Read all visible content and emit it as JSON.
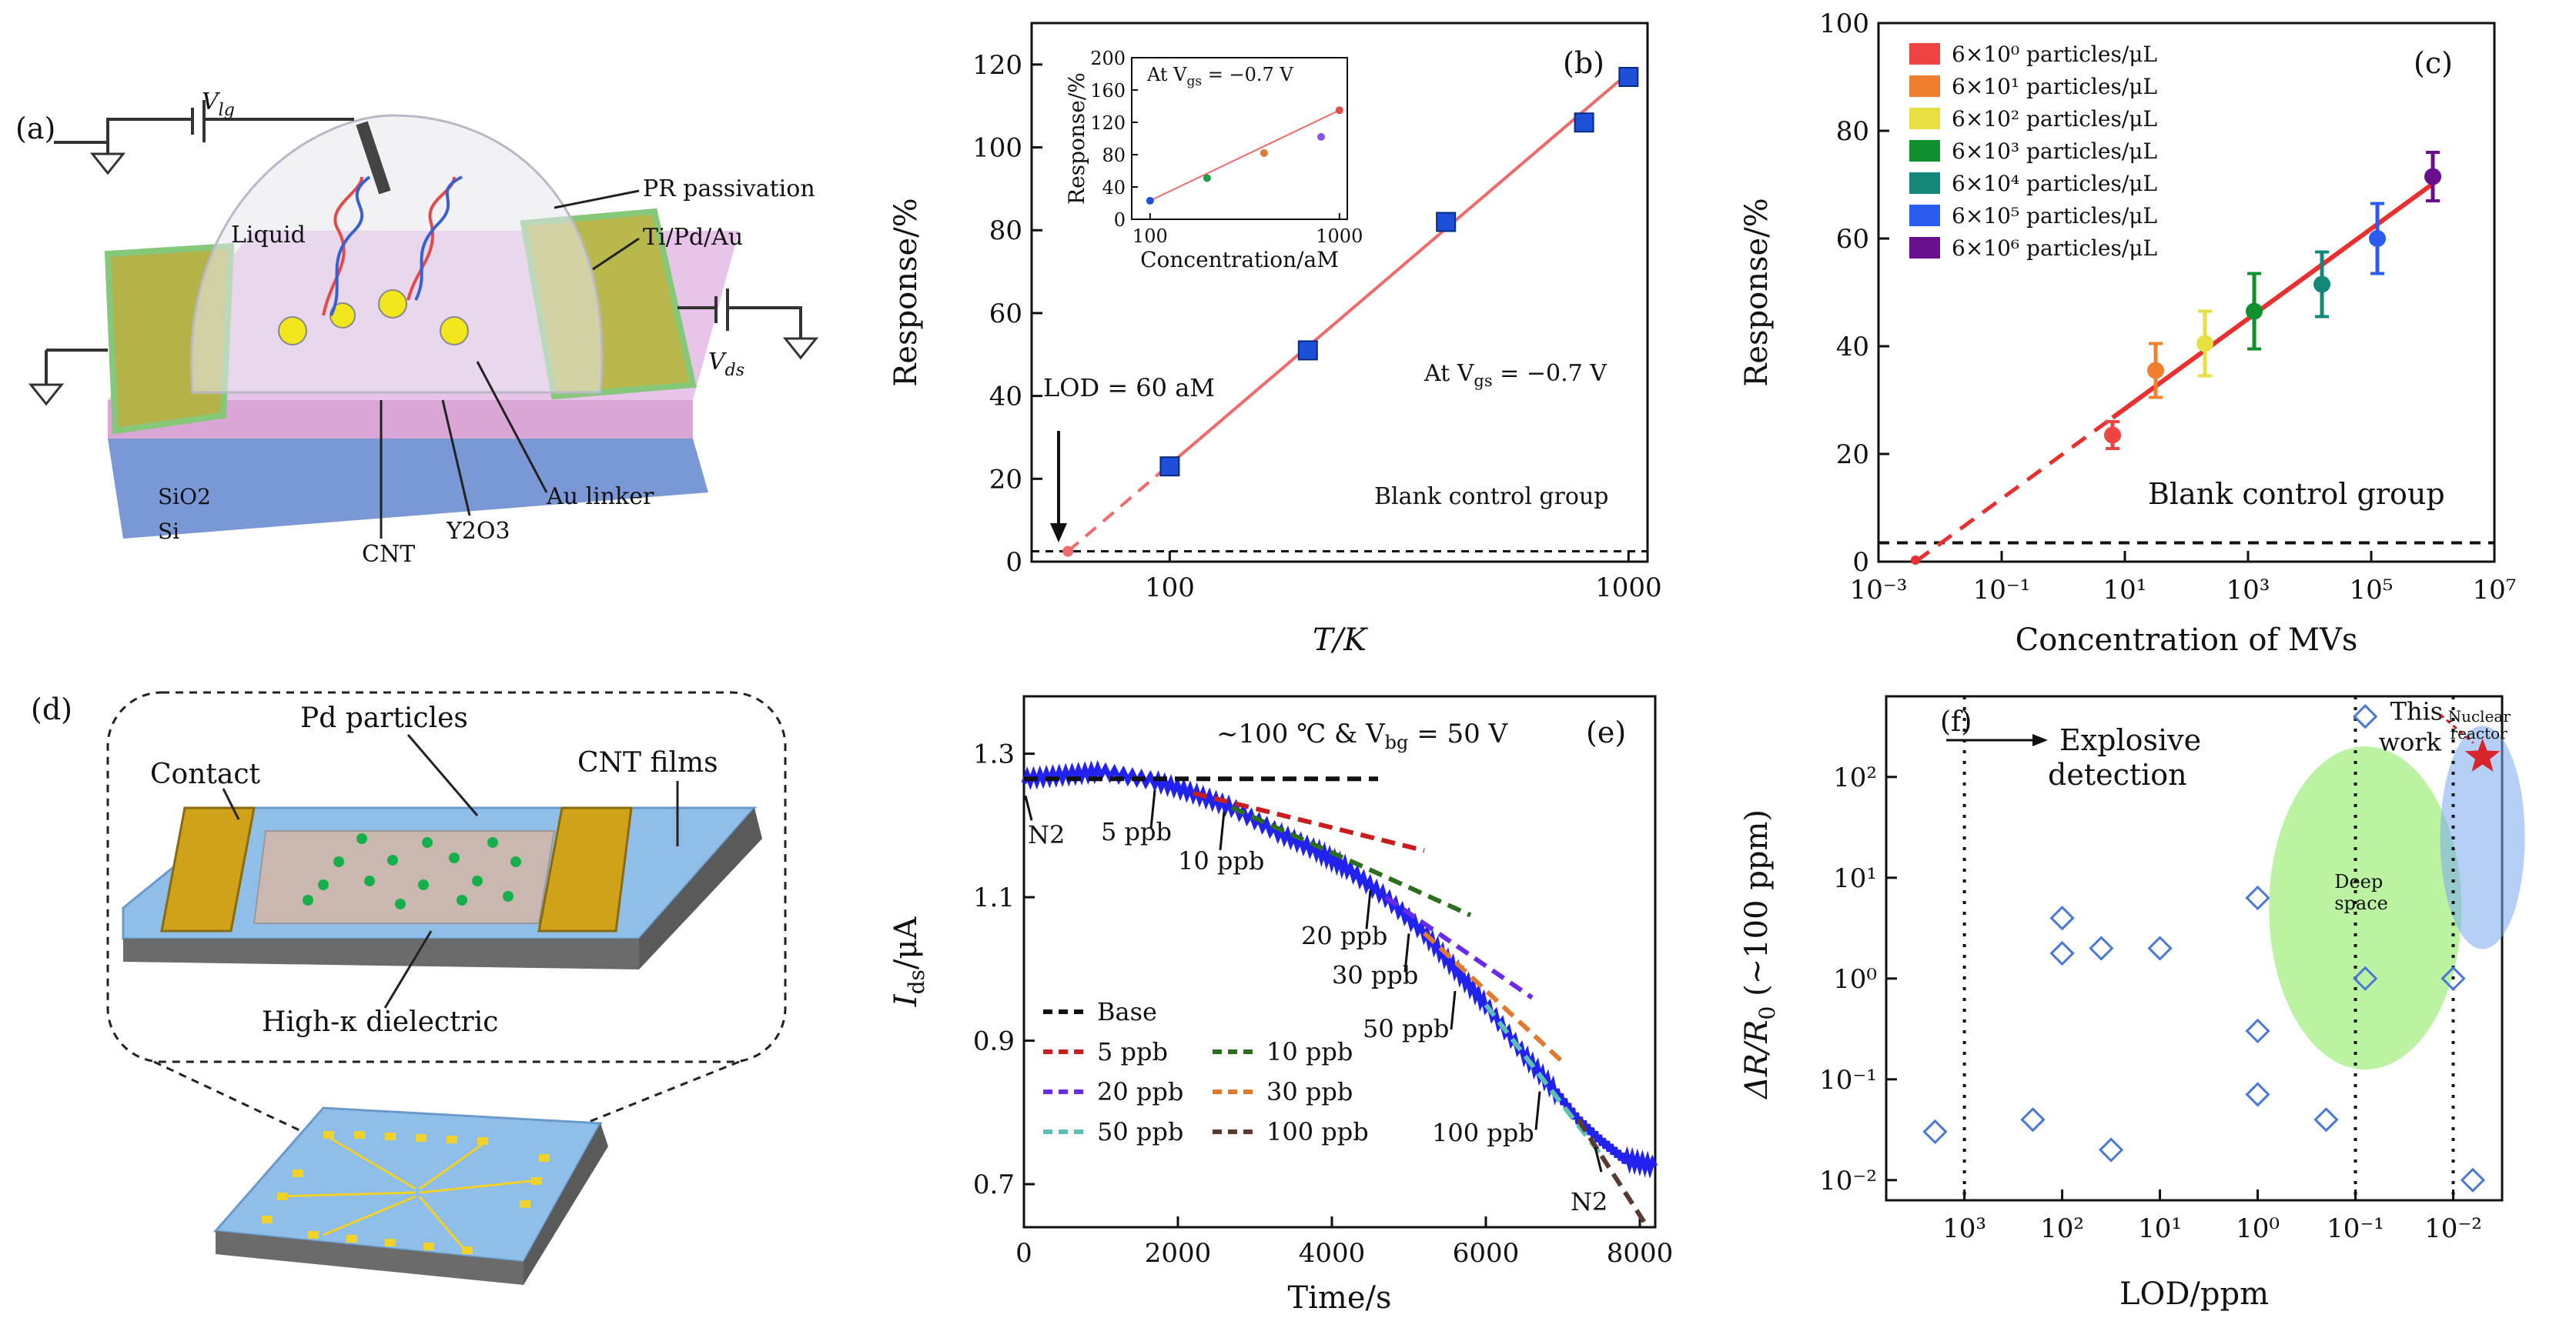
{
  "panels": {
    "a": {
      "label": "(a)",
      "labels": {
        "vlg": "V",
        "vlg_sub": "lg",
        "vds": "V",
        "vds_sub": "ds",
        "pr": "PR passivation",
        "metal": "Ti/Pd/Au",
        "liquid": "Liquid",
        "sio2": "SiO2",
        "si": "Si",
        "cnt": "CNT",
        "y2o3": "Y2O3",
        "au": "Au linker"
      }
    },
    "d": {
      "label": "(d)",
      "labels": {
        "pd": "Pd particles",
        "contact": "Contact",
        "cnt": "CNT films",
        "dielectric": "High-κ dielectric"
      }
    }
  },
  "chart_data": [
    {
      "id": "b",
      "panel_label": "(b)",
      "type": "scatter",
      "xlabel": "T/K",
      "ylabel": "Response/%",
      "xscale": "log",
      "xlim": [
        50,
        1100
      ],
      "ylim": [
        0,
        130
      ],
      "xticks": [
        100,
        1000
      ],
      "xticklabels": [
        "100",
        "1000"
      ],
      "yticks": [
        0,
        20,
        40,
        60,
        80,
        100,
        120
      ],
      "points": [
        {
          "x": 100,
          "y": 23
        },
        {
          "x": 200,
          "y": 51
        },
        {
          "x": 400,
          "y": 82
        },
        {
          "x": 800,
          "y": 106
        },
        {
          "x": 1000,
          "y": 117
        }
      ],
      "fit_line": [
        [
          60,
          2.5
        ],
        [
          1000,
          118
        ]
      ],
      "baseline_y": 2.5,
      "annotations": {
        "lod": "LOD = 60 aM",
        "bias": "At V",
        "bias_sub": "gs",
        "bias_val": " = −0.7 V",
        "blank": "Blank control group"
      },
      "inset": {
        "xlabel": "Concentration/aM",
        "ylabel": "Response/%",
        "xscale": "log",
        "xlim": [
          80,
          1100
        ],
        "ylim": [
          0,
          200
        ],
        "xticks": [
          100,
          1000
        ],
        "xticklabels": [
          "100",
          "1000"
        ],
        "yticks": [
          0,
          40,
          80,
          120,
          160,
          200
        ],
        "title": "At V",
        "title_sub": "gs",
        "title_val": " = −0.7 V",
        "points": [
          {
            "x": 100,
            "y": 23
          },
          {
            "x": 200,
            "y": 51
          },
          {
            "x": 400,
            "y": 82
          },
          {
            "x": 800,
            "y": 102
          },
          {
            "x": 1000,
            "y": 135
          }
        ]
      }
    },
    {
      "id": "c",
      "panel_label": "(c)",
      "type": "scatter",
      "xlabel": "Concentration of MVs",
      "ylabel": "Response/%",
      "xscale": "log",
      "xlim_exp": [
        -3,
        7
      ],
      "ylim": [
        0,
        100
      ],
      "yticks": [
        0,
        20,
        40,
        60,
        80,
        100
      ],
      "xtick_exps": [
        -3,
        -1,
        1,
        3,
        5,
        7
      ],
      "series": [
        {
          "name": "6×10⁰ particles/μL",
          "color": "#ef4444",
          "points": [
            [
              0.8,
              23.5,
              2.5
            ],
            [
              1.5,
              35.5,
              5
            ],
            [
              2.3,
              40.5,
              6
            ]
          ]
        },
        {
          "name": "6×10¹ particles/μL",
          "color": "#f08030",
          "points": [
            [
              1.5,
              35.5,
              5
            ]
          ]
        },
        {
          "name": "6×10² particles/μL",
          "color": "#e6e040",
          "points": [
            [
              2.3,
              40.5,
              6
            ]
          ]
        },
        {
          "name": "6×10³ particles/μL",
          "color": "#10912e",
          "points": [
            [
              3.1,
              46.5,
              7
            ]
          ]
        },
        {
          "name": "6×10⁴ particles/μL",
          "color": "#13877a",
          "points": [
            [
              4.2,
              51.5,
              6
            ]
          ]
        },
        {
          "name": "6×10⁵ particles/μL",
          "color": "#2b5cf2",
          "points": [
            [
              5.1,
              60,
              6.5
            ]
          ]
        },
        {
          "name": "6×10⁶ particles/μL",
          "color": "#6a0f8e",
          "points": [
            [
              6.0,
              71.5,
              4.5
            ]
          ]
        }
      ],
      "fit_line": [
        [
          -2.4,
          0
        ],
        [
          6.1,
          71
        ]
      ],
      "baseline_y": 3.5,
      "annotation": "Blank control group"
    },
    {
      "id": "e",
      "panel_label": "(e)",
      "type": "line",
      "xlabel": "Time/s",
      "ylabel": "I",
      "ylabel_sub": "ds",
      "ylabel_unit": "/μA",
      "xlim": [
        0,
        8200
      ],
      "ylim": [
        0.64,
        1.38
      ],
      "xticks": [
        0,
        2000,
        4000,
        6000,
        8000
      ],
      "yticks": [
        0.7,
        0.9,
        1.1,
        1.3
      ],
      "yticklabels": [
        "0.7",
        "0.9",
        "1.1",
        "1.3"
      ],
      "title": "~100 ℃ & V",
      "title_sub": "bg",
      "title_val": " = 50 V",
      "main_trace": [
        [
          0,
          1.265
        ],
        [
          500,
          1.27
        ],
        [
          1000,
          1.275
        ],
        [
          1700,
          1.262
        ],
        [
          2200,
          1.245
        ],
        [
          2700,
          1.225
        ],
        [
          3300,
          1.19
        ],
        [
          3800,
          1.165
        ],
        [
          4200,
          1.14
        ],
        [
          4700,
          1.1
        ],
        [
          5200,
          1.05
        ],
        [
          5600,
          1.0
        ],
        [
          6000,
          0.95
        ],
        [
          6500,
          0.88
        ],
        [
          6900,
          0.83
        ],
        [
          7200,
          0.79
        ],
        [
          7500,
          0.76
        ],
        [
          7800,
          0.735
        ],
        [
          8200,
          0.725
        ]
      ],
      "series": [
        {
          "name": "Base",
          "color": "#111111",
          "points": [
            [
              0,
              1.265
            ],
            [
              4600,
              1.265
            ]
          ]
        },
        {
          "name": "5 ppb",
          "color": "#c81e1e",
          "points": [
            [
              2200,
              1.245
            ],
            [
              5200,
              1.165
            ]
          ]
        },
        {
          "name": "10 ppb",
          "color": "#2a6e1e",
          "points": [
            [
              2700,
              1.225
            ],
            [
              5800,
              1.075
            ]
          ]
        },
        {
          "name": "20 ppb",
          "color": "#6a2ae6",
          "points": [
            [
              4700,
              1.1
            ],
            [
              6600,
              0.96
            ]
          ]
        },
        {
          "name": "30 ppb",
          "color": "#e07a30",
          "points": [
            [
              5200,
              1.05
            ],
            [
              7000,
              0.87
            ]
          ]
        },
        {
          "name": "50 ppb",
          "color": "#5cc0b4",
          "points": [
            [
              6000,
              0.95
            ],
            [
              7500,
              0.74
            ]
          ]
        },
        {
          "name": "100 ppb",
          "color": "#5a3a30",
          "points": [
            [
              7200,
              0.79
            ],
            [
              8100,
              0.64
            ]
          ]
        }
      ],
      "annotations": [
        {
          "text": "N2",
          "x": 0,
          "y": 1.25
        },
        {
          "text": "5 ppb",
          "x": 1700,
          "y": 1.26
        },
        {
          "text": "10 ppb",
          "x": 2600,
          "y": 1.23
        },
        {
          "text": "20 ppb",
          "x": 4500,
          "y": 1.12
        },
        {
          "text": "30 ppb",
          "x": 5000,
          "y": 1.06
        },
        {
          "text": "50 ppb",
          "x": 5600,
          "y": 0.98
        },
        {
          "text": "100 ppb",
          "x": 6700,
          "y": 0.84
        },
        {
          "text": "N2",
          "x": 7400,
          "y": 0.76
        }
      ]
    },
    {
      "id": "f",
      "panel_label": "(f)",
      "type": "scatter",
      "xlabel": "LOD/ppm",
      "ylabel": "ΔR/R",
      "ylabel_sub": "0",
      "ylabel_unit": " (~100 ppm)",
      "xscale": "log-reversed",
      "yscale": "log",
      "xlim_exp": [
        3.8,
        -2.5
      ],
      "ylim_exp": [
        -2.2,
        2.8
      ],
      "xtick_exps": [
        3,
        2,
        1,
        0,
        -1,
        -2
      ],
      "ytick_exps": [
        -2,
        -1,
        0,
        1,
        2
      ],
      "points": [
        {
          "lod_exp": 3.3,
          "r_exp": -1.52
        },
        {
          "lod_exp": 2.3,
          "r_exp": -1.4
        },
        {
          "lod_exp": 2.0,
          "r_exp": 0.6
        },
        {
          "lod_exp": 2.0,
          "r_exp": 0.25
        },
        {
          "lod_exp": 1.6,
          "r_exp": 0.3
        },
        {
          "lod_exp": 1.5,
          "r_exp": -1.7
        },
        {
          "lod_exp": 1.0,
          "r_exp": 0.3
        },
        {
          "lod_exp": 0.0,
          "r_exp": 0.8
        },
        {
          "lod_exp": 0.0,
          "r_exp": -0.52
        },
        {
          "lod_exp": 0.0,
          "r_exp": -1.15
        },
        {
          "lod_exp": -0.7,
          "r_exp": -1.4
        },
        {
          "lod_exp": -1.1,
          "r_exp": 2.6
        },
        {
          "lod_exp": -1.1,
          "r_exp": 0.0
        },
        {
          "lod_exp": -2.0,
          "r_exp": 0.0
        },
        {
          "lod_exp": -2.2,
          "r_exp": -2.0
        }
      ],
      "star": {
        "lod_exp": -2.3,
        "r_exp": 2.2
      },
      "vlines_exp": [
        3.0,
        -1.0,
        -2.0
      ],
      "annotations": {
        "explosive": [
          "Explosive",
          "detection"
        ],
        "this_work": [
          "This",
          "work"
        ],
        "deep": [
          "Deep",
          "space"
        ],
        "nuclear": [
          "Nuclear",
          "reactor"
        ]
      }
    }
  ]
}
